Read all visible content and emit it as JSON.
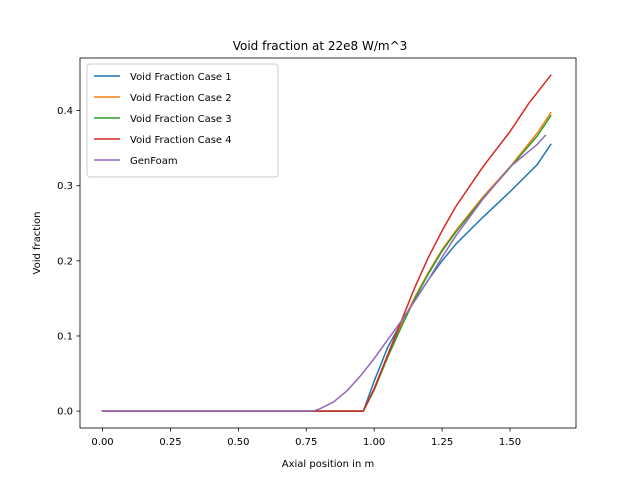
{
  "chart_data": {
    "type": "line",
    "title": "Void fraction at 22e8 W/m^3",
    "xlabel": "Axial position in m",
    "ylabel": "Void fraction",
    "xlim": [
      -0.083,
      1.743
    ],
    "ylim": [
      -0.0225,
      0.47
    ],
    "xticks": [
      0.0,
      0.25,
      0.5,
      0.75,
      1.0,
      1.25,
      1.5
    ],
    "xtick_labels": [
      "0.00",
      "0.25",
      "0.50",
      "0.75",
      "1.00",
      "1.25",
      "1.50"
    ],
    "yticks": [
      0.0,
      0.1,
      0.2,
      0.3,
      0.4
    ],
    "ytick_labels": [
      "0.0",
      "0.1",
      "0.2",
      "0.3",
      "0.4"
    ],
    "grid": false,
    "legend_position": "top-left",
    "series": [
      {
        "name": "Void Fraction Case 1",
        "color": "#1f77b4",
        "x": [
          0.0,
          0.2,
          0.4,
          0.6,
          0.8,
          0.96,
          1.0,
          1.05,
          1.1,
          1.15,
          1.2,
          1.25,
          1.3,
          1.4,
          1.5,
          1.6,
          1.65
        ],
        "y": [
          0.0,
          0.0,
          0.0,
          0.0,
          0.0,
          0.0,
          0.04,
          0.085,
          0.118,
          0.148,
          0.175,
          0.2,
          0.222,
          0.258,
          0.292,
          0.328,
          0.355
        ]
      },
      {
        "name": "Void Fraction Case 2",
        "color": "#ff7f0e",
        "x": [
          0.0,
          0.2,
          0.4,
          0.6,
          0.8,
          0.96,
          1.0,
          1.05,
          1.1,
          1.15,
          1.2,
          1.25,
          1.3,
          1.4,
          1.5,
          1.6,
          1.65
        ],
        "y": [
          0.0,
          0.0,
          0.0,
          0.0,
          0.0,
          0.0,
          0.03,
          0.075,
          0.115,
          0.152,
          0.185,
          0.215,
          0.24,
          0.285,
          0.325,
          0.37,
          0.397
        ]
      },
      {
        "name": "Void Fraction Case 3",
        "color": "#2ca02c",
        "x": [
          0.0,
          0.2,
          0.4,
          0.6,
          0.8,
          0.96,
          1.0,
          1.05,
          1.1,
          1.15,
          1.2,
          1.25,
          1.3,
          1.4,
          1.5,
          1.6,
          1.65
        ],
        "y": [
          0.0,
          0.0,
          0.0,
          0.0,
          0.0,
          0.0,
          0.028,
          0.072,
          0.112,
          0.15,
          0.183,
          0.213,
          0.238,
          0.283,
          0.324,
          0.366,
          0.393
        ]
      },
      {
        "name": "Void Fraction Case 4",
        "color": "#d62728",
        "x": [
          0.0,
          0.2,
          0.4,
          0.6,
          0.8,
          0.96,
          1.0,
          1.05,
          1.1,
          1.15,
          1.2,
          1.25,
          1.3,
          1.4,
          1.5,
          1.57,
          1.65
        ],
        "y": [
          0.0,
          0.0,
          0.0,
          0.0,
          0.0,
          0.0,
          0.03,
          0.075,
          0.12,
          0.165,
          0.205,
          0.24,
          0.272,
          0.325,
          0.372,
          0.41,
          0.447
        ]
      },
      {
        "name": "GenFoam",
        "color": "#9467bd",
        "x": [
          0.0,
          0.2,
          0.4,
          0.6,
          0.75,
          0.78,
          0.8,
          0.85,
          0.9,
          0.95,
          1.0,
          1.05,
          1.1,
          1.15,
          1.2,
          1.25,
          1.3,
          1.4,
          1.5,
          1.6,
          1.63
        ],
        "y": [
          0.0,
          0.0,
          0.0,
          0.0,
          0.0,
          0.0005,
          0.003,
          0.012,
          0.027,
          0.047,
          0.07,
          0.095,
          0.12,
          0.147,
          0.175,
          0.205,
          0.233,
          0.282,
          0.325,
          0.355,
          0.367
        ]
      }
    ]
  }
}
